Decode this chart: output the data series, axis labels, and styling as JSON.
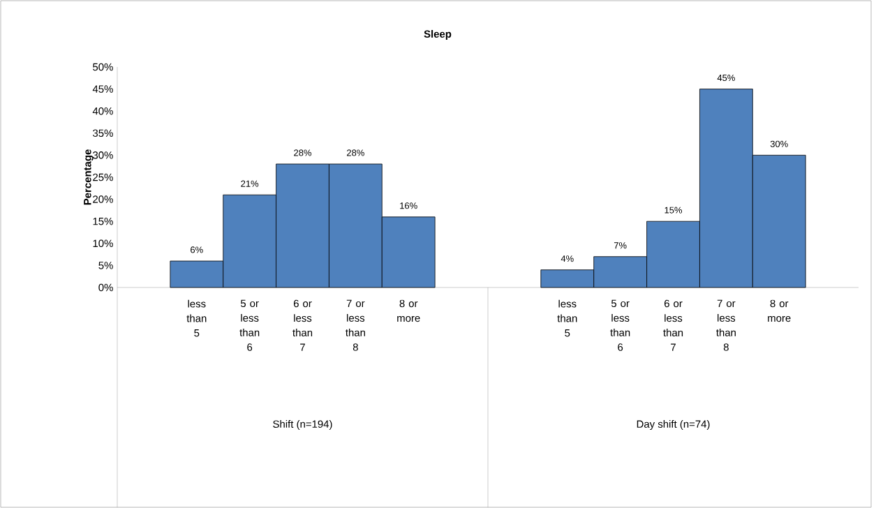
{
  "chart_data": {
    "type": "bar",
    "title": "Sleep",
    "ylabel": "Percentage",
    "categories": [
      null,
      "less than 5",
      "5 or less than 6",
      "6 or less than 7",
      "7 or less than 8",
      "8 or more",
      null,
      null,
      "less than 5",
      "5 or less than 6",
      "6 or less than 7",
      "7 or less than 8",
      "8 or more",
      null
    ],
    "values": [
      null,
      6,
      21,
      28,
      28,
      16,
      null,
      null,
      4,
      7,
      15,
      45,
      30,
      null
    ],
    "value_labels": [
      null,
      "6%",
      "21%",
      "28%",
      "28%",
      "16%",
      null,
      null,
      "4%",
      "7%",
      "15%",
      "45%",
      "30%",
      null
    ],
    "color": "#4f81bd",
    "ylim": [
      0,
      50
    ],
    "yticks": [
      {
        "value": 0,
        "label": "0%"
      },
      {
        "value": 5,
        "label": "5%"
      },
      {
        "value": 10,
        "label": "10%"
      },
      {
        "value": 15,
        "label": "15%"
      },
      {
        "value": 20,
        "label": "20%"
      },
      {
        "value": 25,
        "label": "25%"
      },
      {
        "value": 30,
        "label": "30%"
      },
      {
        "value": 35,
        "label": "35%"
      },
      {
        "value": 40,
        "label": "40%"
      },
      {
        "value": 45,
        "label": "45%"
      },
      {
        "value": 50,
        "label": "50%"
      }
    ],
    "annotations": [
      "Shift (n=194)",
      "Day shift (n=74)"
    ],
    "grid": false
  }
}
